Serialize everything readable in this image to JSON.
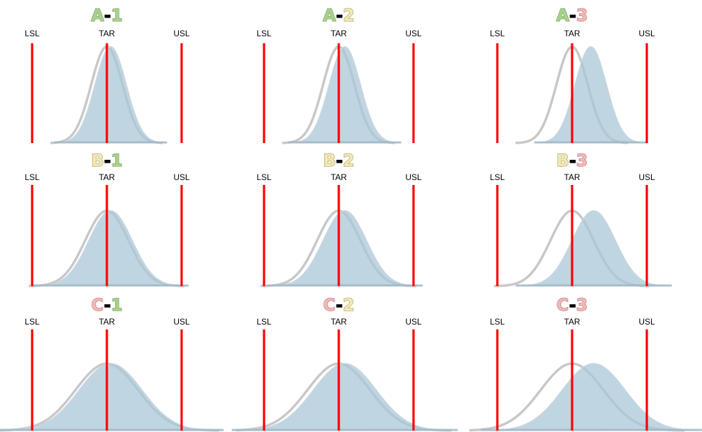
{
  "colors": {
    "level_1": "#a9d18e",
    "level_1_outline": "#6f9a55",
    "level_2": "#f3e8b4",
    "level_2_outline": "#a89a5e",
    "level_3": "#f2b8b8",
    "level_3_outline": "#b57676",
    "dash": "#000000",
    "spec_line": "#ff0000",
    "reference_curve": "#c8c8c8",
    "actual_curve": "#a9c7d8"
  },
  "limit_labels": {
    "lsl": "LSL",
    "tar": "TAR",
    "usl": "USL"
  },
  "panels": [
    {
      "row": "A",
      "col": "1",
      "row_level": 1,
      "col_level": 1,
      "mean_offset": 0.05,
      "spread": 0.21
    },
    {
      "row": "A",
      "col": "2",
      "row_level": 1,
      "col_level": 2,
      "mean_offset": 0.08,
      "spread": 0.21
    },
    {
      "row": "A",
      "col": "3",
      "row_level": 1,
      "col_level": 3,
      "mean_offset": 0.25,
      "spread": 0.21
    },
    {
      "row": "B",
      "col": "1",
      "row_level": 2,
      "col_level": 1,
      "mean_offset": 0.05,
      "spread": 0.29
    },
    {
      "row": "B",
      "col": "2",
      "row_level": 2,
      "col_level": 2,
      "mean_offset": 0.08,
      "spread": 0.29
    },
    {
      "row": "B",
      "col": "3",
      "row_level": 2,
      "col_level": 3,
      "mean_offset": 0.29,
      "spread": 0.29
    },
    {
      "row": "C",
      "col": "1",
      "row_level": 3,
      "col_level": 1,
      "mean_offset": 0.05,
      "spread": 0.42
    },
    {
      "row": "C",
      "col": "2",
      "row_level": 3,
      "col_level": 2,
      "mean_offset": 0.08,
      "spread": 0.42
    },
    {
      "row": "C",
      "col": "3",
      "row_level": 3,
      "col_level": 3,
      "mean_offset": 0.29,
      "spread": 0.42
    }
  ]
}
